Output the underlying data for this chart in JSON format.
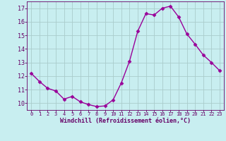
{
  "x": [
    0,
    1,
    2,
    3,
    4,
    5,
    6,
    7,
    8,
    9,
    10,
    11,
    12,
    13,
    14,
    15,
    16,
    17,
    18,
    19,
    20,
    21,
    22,
    23
  ],
  "y": [
    12.2,
    11.6,
    11.1,
    10.9,
    10.3,
    10.5,
    10.1,
    9.9,
    9.75,
    9.8,
    10.25,
    11.5,
    13.1,
    15.3,
    16.6,
    16.5,
    17.0,
    17.15,
    16.35,
    15.1,
    14.35,
    13.55,
    13.0,
    12.4
  ],
  "line_color": "#990099",
  "marker": "D",
  "markersize": 2.5,
  "linewidth": 1.0,
  "bg_color": "#c8eef0",
  "grid_color": "#aacccc",
  "title": "Windchill (Refroidissement éolien,°C)",
  "tick_color": "#660066",
  "ylim": [
    9.5,
    17.5
  ],
  "xlim": [
    -0.5,
    23.5
  ],
  "yticks": [
    10,
    11,
    12,
    13,
    14,
    15,
    16,
    17
  ],
  "xticks": [
    0,
    1,
    2,
    3,
    4,
    5,
    6,
    7,
    8,
    9,
    10,
    11,
    12,
    13,
    14,
    15,
    16,
    17,
    18,
    19,
    20,
    21,
    22,
    23
  ],
  "xtick_fontsize": 5.0,
  "ytick_fontsize": 6.0,
  "xlabel_fontsize": 6.0
}
